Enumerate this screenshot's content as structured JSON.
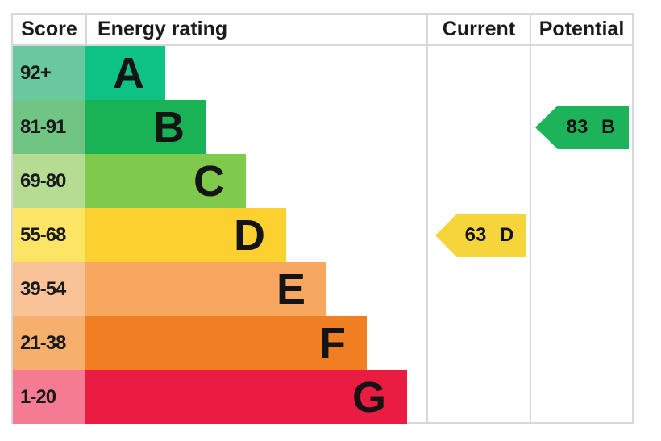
{
  "header": {
    "score": "Score",
    "energy_rating": "Energy rating",
    "current": "Current",
    "potential": "Potential"
  },
  "chart_data": {
    "type": "bar",
    "title": "Energy rating",
    "description": "EPC energy efficiency rating chart with score bands A-G and current/potential rating arrows",
    "bands": [
      {
        "letter": "A",
        "score_range": "92+",
        "bar_color": "#0dc284",
        "score_cell_color": "#69c89d"
      },
      {
        "letter": "B",
        "score_range": "81-91",
        "bar_color": "#19b254",
        "score_cell_color": "#71c584"
      },
      {
        "letter": "C",
        "score_range": "69-80",
        "bar_color": "#7fc94c",
        "score_cell_color": "#b5dc92"
      },
      {
        "letter": "D",
        "score_range": "55-68",
        "bar_color": "#fcd02e",
        "score_cell_color": "#fce465"
      },
      {
        "letter": "E",
        "score_range": "39-54",
        "bar_color": "#f7a75f",
        "score_cell_color": "#fac297"
      },
      {
        "letter": "F",
        "score_range": "21-38",
        "bar_color": "#f07e23",
        "score_cell_color": "#f6af6d"
      },
      {
        "letter": "G",
        "score_range": "1-20",
        "bar_color": "#ea1c41",
        "score_cell_color": "#f47b92"
      }
    ],
    "current": {
      "value": 63,
      "band": "D",
      "label": "63 D",
      "color": "#f6d43c"
    },
    "potential": {
      "value": 83,
      "band": "B",
      "label": "83 B",
      "color": "#1cb35b"
    }
  }
}
